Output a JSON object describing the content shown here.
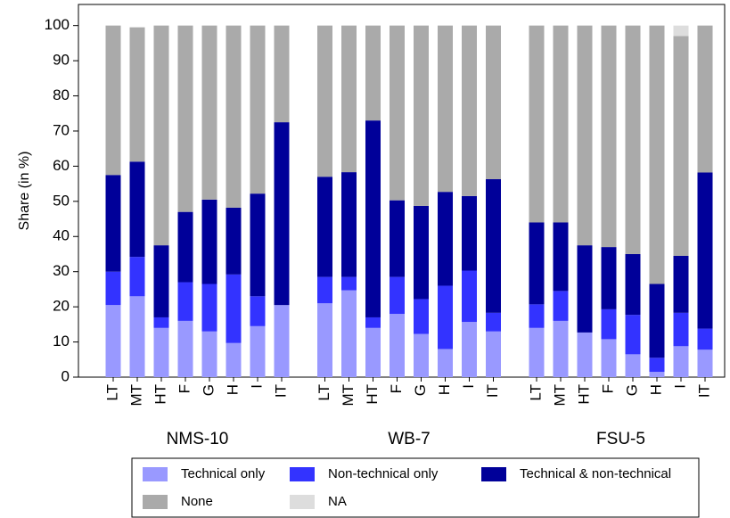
{
  "chart_data": {
    "type": "stacked_bar",
    "y_label": "Share (in %)",
    "groups": [
      "NMS-10",
      "WB-7",
      "FSU-5"
    ],
    "categories": [
      "LT",
      "MT",
      "HT",
      "F",
      "G",
      "H",
      "I",
      "IT",
      "LT",
      "MT",
      "HT",
      "F",
      "G",
      "H",
      "I",
      "IT",
      "LT",
      "MT",
      "HT",
      "F",
      "G",
      "H",
      "I",
      "IT"
    ],
    "series": [
      {
        "name": "Technical only",
        "color": "#9999ff",
        "values": [
          20.5,
          23,
          14,
          16,
          13,
          9.7,
          14.5,
          20.5,
          21,
          24.7,
          14,
          18,
          12.3,
          8,
          15.7,
          13,
          14,
          16,
          12.7,
          10.8,
          6.5,
          1.5,
          8.8,
          7.8
        ]
      },
      {
        "name": "Non-technical only",
        "color": "#3333ff",
        "values": [
          9.5,
          11.2,
          3,
          11,
          13.5,
          19.5,
          8.5,
          0,
          7.5,
          3.8,
          3,
          10.5,
          9.9,
          18,
          14.6,
          5.3,
          6.7,
          8.5,
          0,
          8.5,
          11.2,
          4,
          9.5,
          6
        ]
      },
      {
        "name": "Technical & non-technical",
        "color": "#000099",
        "values": [
          27.5,
          27.1,
          20.5,
          20,
          24,
          19,
          29.2,
          52,
          28.5,
          29.8,
          56,
          21.8,
          26.5,
          26.7,
          21.2,
          38,
          23.3,
          19.5,
          24.8,
          17.7,
          17.3,
          21,
          16.2,
          44.4
        ]
      },
      {
        "name": "None",
        "color": "#aaaaaa",
        "values": [
          42.5,
          38.2,
          62.5,
          53,
          49.5,
          51.8,
          47.8,
          27.5,
          43,
          41.7,
          27,
          49.7,
          51.3,
          47.3,
          48.5,
          43.7,
          56,
          56,
          62.5,
          63,
          65,
          73.5,
          62.5,
          41.8
        ]
      },
      {
        "name": "NA",
        "color": "#dddddd",
        "values": [
          0,
          0,
          0,
          0,
          0,
          0,
          0,
          0,
          0,
          0,
          0,
          0,
          0,
          0,
          0,
          0,
          0,
          0,
          0,
          0,
          0,
          0,
          3,
          0
        ]
      }
    ],
    "ylim": [
      0,
      106
    ],
    "yticks": [
      0,
      10,
      20,
      30,
      40,
      50,
      60,
      70,
      80,
      90,
      100
    ]
  }
}
